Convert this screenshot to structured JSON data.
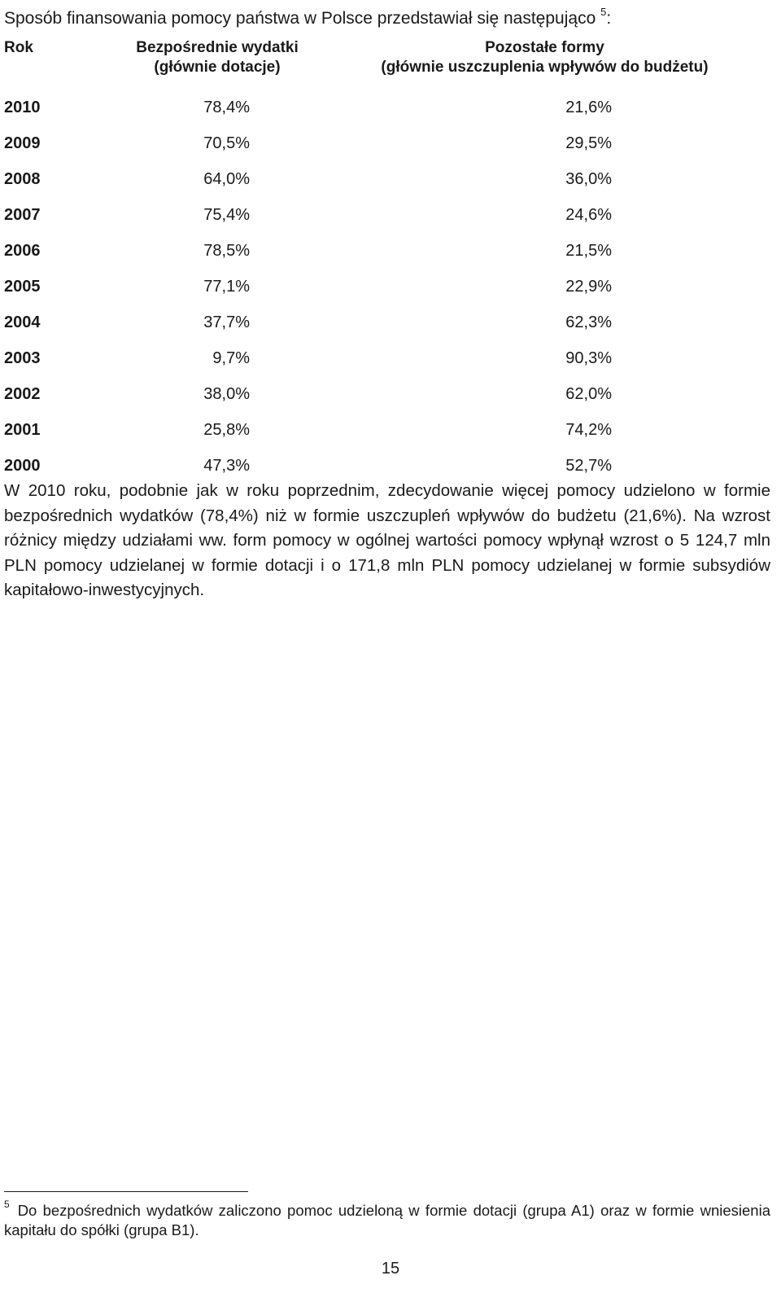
{
  "intro": {
    "text": "Sposób finansowania pomocy państwa w Polsce przedstawiał się następująco",
    "footnote_ref": "5",
    "suffix": ":"
  },
  "table": {
    "headers": {
      "year": "Rok",
      "direct_line1": "Bezpośrednie wydatki",
      "direct_line2": "(głównie dotacje)",
      "other_line1": "Pozostałe formy",
      "other_line2": "(głównie uszczuplenia wpływów do budżetu)"
    },
    "rows": [
      {
        "year": "2010",
        "direct": "78,4%",
        "other": "21,6%"
      },
      {
        "year": "2009",
        "direct": "70,5%",
        "other": "29,5%"
      },
      {
        "year": "2008",
        "direct": "64,0%",
        "other": "36,0%"
      },
      {
        "year": "2007",
        "direct": "75,4%",
        "other": "24,6%"
      },
      {
        "year": "2006",
        "direct": "78,5%",
        "other": "21,5%"
      },
      {
        "year": "2005",
        "direct": "77,1%",
        "other": "22,9%"
      },
      {
        "year": "2004",
        "direct": "37,7%",
        "other": "62,3%"
      },
      {
        "year": "2003",
        "direct": "9,7%",
        "other": "90,3%"
      },
      {
        "year": "2002",
        "direct": "38,0%",
        "other": "62,0%"
      },
      {
        "year": "2001",
        "direct": "25,8%",
        "other": "74,2%"
      },
      {
        "year": "2000",
        "direct": "47,3%",
        "other": "52,7%"
      }
    ]
  },
  "paragraph": "W 2010 roku, podobnie jak w roku poprzednim, zdecydowanie więcej pomocy udzielono w formie bezpośrednich wydatków (78,4%) niż w formie uszczupleń wpływów do budżetu (21,6%). Na wzrost różnicy między udziałami ww. form pomocy w ogólnej wartości pomocy wpłynął wzrost o 5 124,7 mln PLN pomocy udzielanej w formie dotacji i o 171,8 mln PLN pomocy udzielanej w formie subsydiów kapitałowo-inwestycyjnych.",
  "footnote": {
    "number": "5",
    "text": "Do bezpośrednich wydatków zaliczono pomoc udzieloną w formie dotacji (grupa A1) oraz w formie wniesienia kapitału do spółki (grupa B1)."
  },
  "page_number": "15"
}
